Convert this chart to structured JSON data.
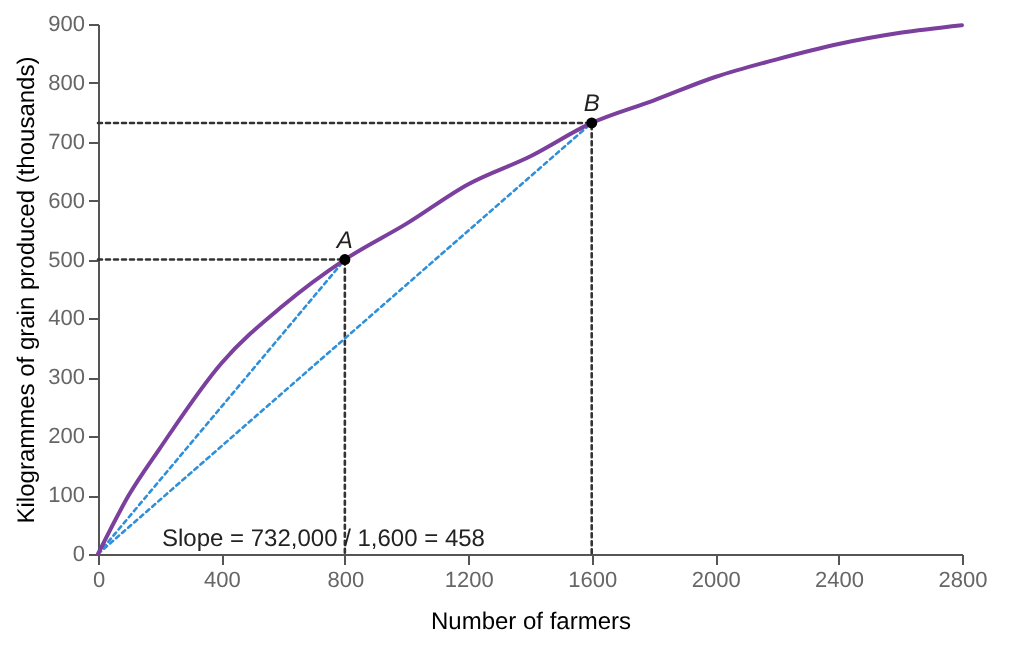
{
  "chart_data": {
    "type": "line",
    "xlabel": "Number of farmers",
    "ylabel": "Kilogrammes of grain produced (thousands)",
    "xlim": [
      0,
      2800
    ],
    "xticks": [
      0,
      400,
      800,
      1200,
      1600,
      2000,
      2400,
      2800
    ],
    "ylim": [
      0,
      900
    ],
    "yticks": [
      0,
      100,
      200,
      300,
      400,
      500,
      600,
      700,
      800,
      900
    ],
    "series": [
      {
        "color": "#333333",
        "line_style": "dotted",
        "x": [
          0,
          800,
          800
        ],
        "values": [
          500,
          500,
          0
        ]
      },
      {
        "color": "#333333",
        "line_style": "dotted",
        "x": [
          0,
          1600,
          1600
        ],
        "values": [
          732,
          732,
          0
        ]
      },
      {
        "color": "#2f8fd8",
        "line_style": "dotted",
        "x": [
          0,
          800
        ],
        "values": [
          0,
          500
        ]
      },
      {
        "color": "#2f8fd8",
        "line_style": "dotted",
        "x": [
          0,
          1600
        ],
        "values": [
          0,
          732
        ]
      },
      {
        "color": "#7b3f9e",
        "line_style": "solid",
        "x": [
          0,
          100,
          200,
          400,
          600,
          800,
          1000,
          1200,
          1400,
          1600,
          1800,
          2000,
          2200,
          2400,
          2600,
          2800
        ],
        "values": [
          0,
          100,
          179,
          324,
          422,
          500,
          561,
          628,
          675,
          732,
          770,
          810,
          840,
          866,
          885,
          898
        ]
      },
      {
        "type": "scatter",
        "color": "#000000",
        "marker": "circle",
        "x": [
          800,
          1600
        ],
        "values": [
          500,
          732
        ]
      }
    ],
    "annotations": [
      {
        "text": "A",
        "x": 800,
        "y": 500
      },
      {
        "text": "B",
        "x": 1600,
        "y": 732
      },
      "Slope = 732,000 / 1,600 = 458"
    ],
    "grid": false
  }
}
